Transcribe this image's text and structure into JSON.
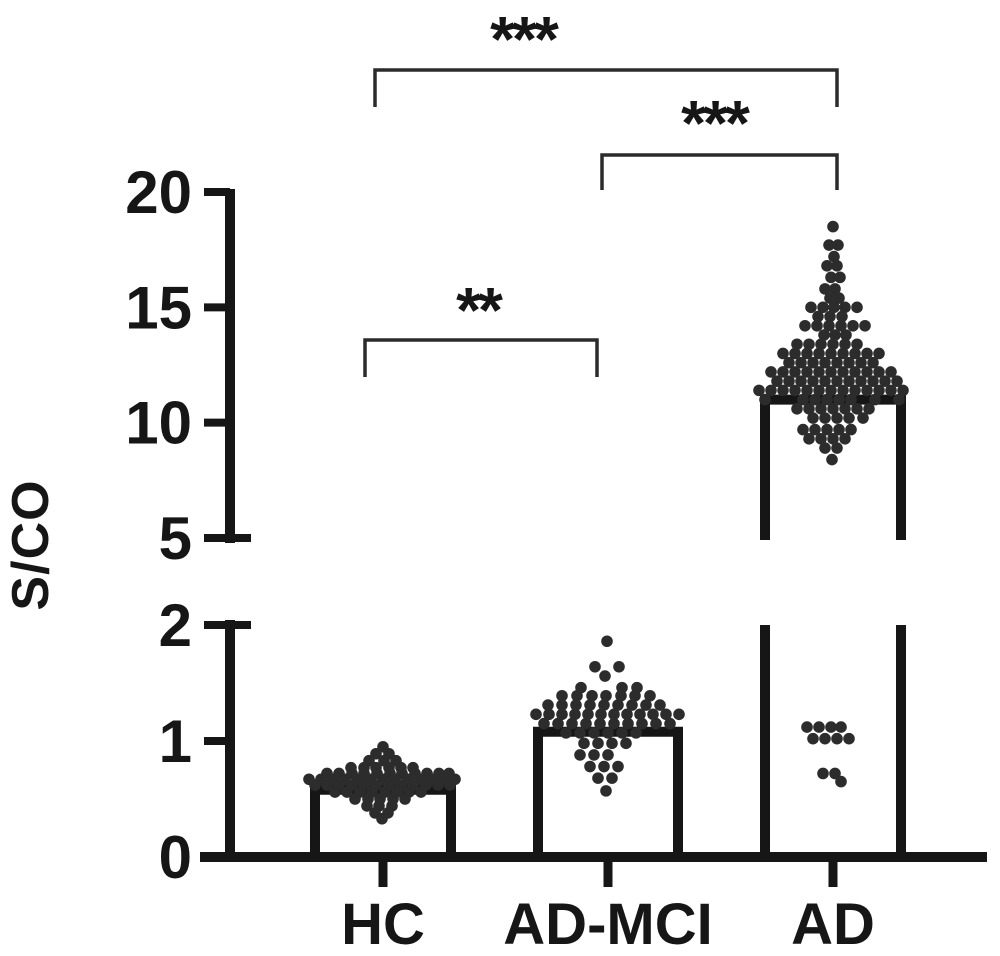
{
  "figure": {
    "background": "#ffffff",
    "ink_color": "#161616",
    "dot_color": "#2c2c2c",
    "bracket_color": "#2b2b2b"
  },
  "chart_data": {
    "type": "bar+beeswarm-scatter",
    "title": "",
    "xlabel": "",
    "ylabel": "S/CO",
    "legend": "none",
    "grid": false,
    "categories": [
      "HC",
      "AD-MCI",
      "AD"
    ],
    "bar_values": [
      0.58,
      1.08,
      11.0
    ],
    "bar_fill": "#ffffff",
    "axis": {
      "broken": true,
      "lower": {
        "range": [
          0,
          2
        ],
        "ticks": [
          0,
          1,
          2
        ]
      },
      "upper": {
        "range": [
          5,
          20
        ],
        "ticks": [
          5,
          10,
          15,
          20
        ]
      }
    },
    "significance": [
      {
        "pair": [
          "HC",
          "AD"
        ],
        "label": "***"
      },
      {
        "pair": [
          "AD-MCI",
          "AD"
        ],
        "label": "***"
      },
      {
        "pair": [
          "HC",
          "AD-MCI"
        ],
        "label": "**"
      }
    ],
    "scatter": [
      {
        "group": "HC",
        "rows": [
          {
            "v": 0.95,
            "dx": [
              0
            ]
          },
          {
            "v": 0.89,
            "dx": [
              -7,
              6
            ]
          },
          {
            "v": 0.83,
            "dx": [
              -14,
              1,
              13
            ]
          },
          {
            "v": 0.77,
            "dx": [
              -32,
              -19,
              -7,
              6,
              18,
              30
            ]
          },
          {
            "v": 0.72,
            "dx": [
              -56,
              -44,
              -31,
              -19,
              -6,
              7,
              19,
              32,
              44,
              56,
              66
            ]
          },
          {
            "v": 0.67,
            "dx": [
              -74,
              -62,
              -50,
              -38,
              -25,
              -13,
              0,
              12,
              25,
              37,
              49,
              61,
              72
            ]
          },
          {
            "v": 0.62,
            "dx": [
              -68,
              -56,
              -44,
              -31,
              -19,
              -7,
              6,
              18,
              30,
              43,
              55,
              67
            ]
          },
          {
            "v": 0.56,
            "dx": [
              -48,
              -36,
              -23,
              -11,
              2,
              14,
              26,
              38
            ]
          },
          {
            "v": 0.5,
            "dx": [
              -28,
              -15,
              -3,
              10,
              22
            ]
          },
          {
            "v": 0.44,
            "dx": [
              -16,
              -4,
              9
            ]
          },
          {
            "v": 0.38,
            "dx": [
              -8,
              5
            ]
          },
          {
            "v": 0.33,
            "dx": [
              -1
            ]
          }
        ]
      },
      {
        "group": "AD-MCI",
        "rows": [
          {
            "v": 1.86,
            "dx": [
              -1
            ]
          },
          {
            "v": 1.64,
            "dx": [
              -13,
              11
            ]
          },
          {
            "v": 1.56,
            "dx": [
              -3
            ]
          },
          {
            "v": 1.46,
            "dx": [
              -27,
              14,
              29
            ]
          },
          {
            "v": 1.39,
            "dx": [
              -46,
              -31,
              -16,
              -2,
              13,
              27,
              42
            ]
          },
          {
            "v": 1.31,
            "dx": [
              -60,
              -46,
              -32,
              -18,
              -4,
              10,
              24,
              38,
              52
            ]
          },
          {
            "v": 1.23,
            "dx": [
              -72,
              -59,
              -46,
              -33,
              -20,
              -7,
              6,
              19,
              32,
              45,
              58,
              71
            ]
          },
          {
            "v": 1.15,
            "dx": [
              -64,
              -50,
              -36,
              -22,
              -8,
              6,
              20,
              34,
              48,
              62
            ]
          },
          {
            "v": 1.07,
            "dx": [
              -42,
              -28,
              -14,
              0,
              14,
              28
            ]
          },
          {
            "v": 0.98,
            "dx": [
              -24,
              -10,
              4,
              18
            ]
          },
          {
            "v": 0.88,
            "dx": [
              -28,
              -14,
              0
            ]
          },
          {
            "v": 0.78,
            "dx": [
              -18,
              -4,
              10
            ]
          },
          {
            "v": 0.68,
            "dx": [
              -10,
              4
            ]
          },
          {
            "v": 0.57,
            "dx": [
              -2
            ]
          }
        ]
      },
      {
        "group": "AD",
        "rows": [
          {
            "v": 18.5,
            "dx": [
              0
            ]
          },
          {
            "v": 17.7,
            "dx": [
              -4,
              5
            ]
          },
          {
            "v": 17.2,
            "dx": [
              1
            ]
          },
          {
            "v": 16.8,
            "dx": [
              -6,
              4
            ]
          },
          {
            "v": 16.3,
            "dx": [
              -2,
              7
            ]
          },
          {
            "v": 15.8,
            "dx": [
              -8,
              2
            ]
          },
          {
            "v": 15.4,
            "dx": [
              -3,
              6
            ]
          },
          {
            "v": 15.0,
            "dx": [
              -22,
              -10,
              1,
              12,
              24
            ]
          },
          {
            "v": 14.6,
            "dx": [
              -15,
              -3,
              9
            ]
          },
          {
            "v": 14.2,
            "dx": [
              -28,
              -16,
              -4,
              8,
              20,
              32
            ]
          },
          {
            "v": 13.8,
            "dx": [
              -9,
              2,
              13
            ]
          },
          {
            "v": 13.4,
            "dx": [
              -36,
              -24,
              -12,
              0,
              12,
              24
            ]
          },
          {
            "v": 13.0,
            "dx": [
              -50,
              -38,
              -26,
              -14,
              -2,
              10,
              22,
              34,
              46
            ]
          },
          {
            "v": 12.6,
            "dx": [
              -44,
              -32,
              -20,
              -8,
              4,
              16,
              28,
              40
            ]
          },
          {
            "v": 12.2,
            "dx": [
              -62,
              -50,
              -38,
              -26,
              -14,
              -2,
              10,
              22,
              34,
              46,
              58
            ]
          },
          {
            "v": 11.8,
            "dx": [
              -56,
              -44,
              -32,
              -20,
              -8,
              4,
              16,
              28,
              40,
              52,
              64
            ]
          },
          {
            "v": 11.4,
            "dx": [
              -74,
              -62,
              -50,
              -38,
              -26,
              -14,
              -2,
              10,
              22,
              34,
              46,
              58,
              70
            ]
          },
          {
            "v": 11.0,
            "dx": [
              -68,
              -30,
              -18,
              -6,
              6,
              18,
              42,
              66
            ]
          },
          {
            "v": 10.6,
            "dx": [
              -36,
              -24,
              -12,
              0,
              12,
              24,
              36
            ]
          },
          {
            "v": 10.2,
            "dx": [
              -20,
              -8,
              4,
              16,
              30
            ]
          },
          {
            "v": 9.7,
            "dx": [
              -30,
              -18,
              -6,
              6,
              18
            ]
          },
          {
            "v": 9.3,
            "dx": [
              -24,
              -12,
              0,
              12
            ]
          },
          {
            "v": 8.9,
            "dx": [
              -8,
              4
            ]
          },
          {
            "v": 8.4,
            "dx": [
              -1
            ]
          },
          {
            "v": 1.12,
            "dx": [
              -26,
              -14,
              -2,
              8
            ]
          },
          {
            "v": 1.02,
            "dx": [
              -20,
              -8,
              4,
              16
            ]
          },
          {
            "v": 0.72,
            "dx": [
              -10,
              2
            ]
          },
          {
            "v": 0.65,
            "dx": [
              8
            ]
          }
        ]
      }
    ]
  }
}
